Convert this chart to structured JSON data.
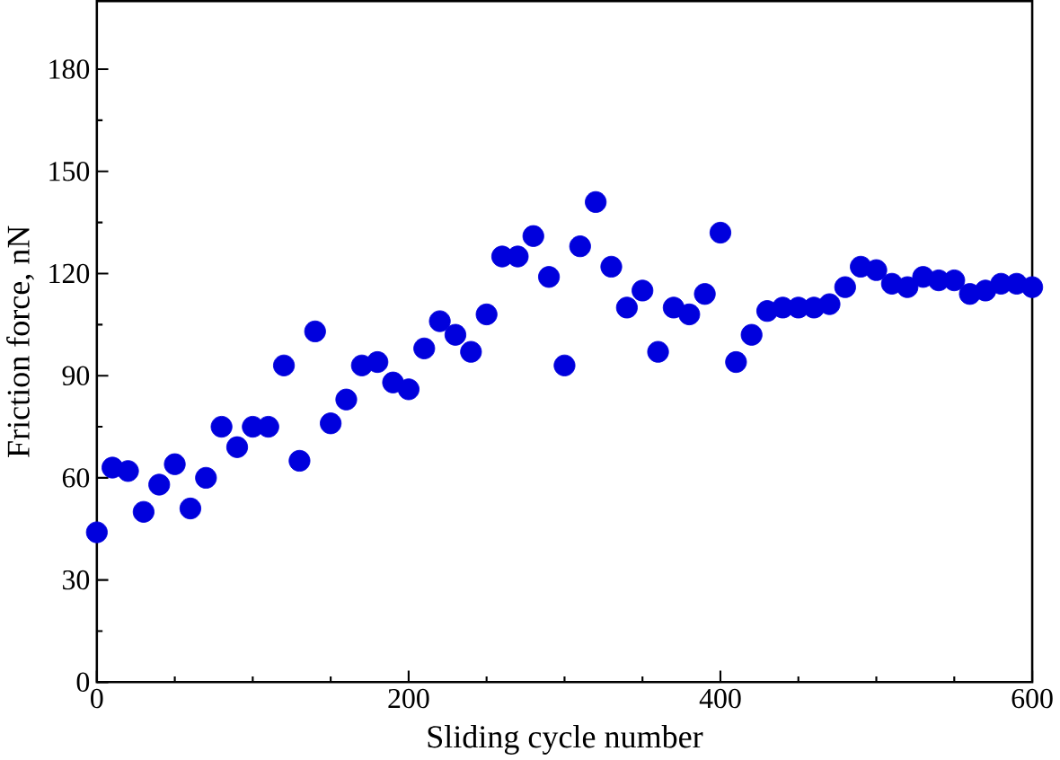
{
  "chart_data": {
    "type": "scatter",
    "xlabel": "Sliding cycle number",
    "ylabel": "Friction force, nN",
    "marker": "circle",
    "grid": false,
    "xlim": [
      0,
      600
    ],
    "xticks": [
      0,
      200,
      400,
      600
    ],
    "ylim": [
      0,
      200
    ],
    "yticks": [
      0,
      30,
      60,
      90,
      120,
      150,
      180
    ],
    "x": [
      0,
      10,
      20,
      30,
      40,
      50,
      60,
      70,
      80,
      90,
      100,
      110,
      120,
      130,
      140,
      150,
      160,
      170,
      180,
      190,
      200,
      210,
      220,
      230,
      240,
      250,
      260,
      270,
      280,
      290,
      300,
      310,
      320,
      330,
      340,
      350,
      360,
      370,
      380,
      390,
      400,
      410,
      420,
      430,
      440,
      450,
      460,
      470,
      480,
      490,
      500,
      510,
      520,
      530,
      540,
      550,
      560,
      570,
      580,
      590,
      600
    ],
    "series": [
      {
        "color": "#0000dd",
        "values": [
          44,
          63,
          62,
          50,
          58,
          64,
          51,
          60,
          75,
          69,
          75,
          75,
          93,
          65,
          103,
          76,
          83,
          93,
          94,
          88,
          86,
          98,
          106,
          102,
          97,
          108,
          125,
          125,
          131,
          119,
          93,
          128,
          141,
          122,
          110,
          115,
          97,
          110,
          108,
          114,
          132,
          94,
          102,
          109,
          110,
          110,
          110,
          111,
          116,
          122,
          121,
          117,
          116,
          119,
          118,
          118,
          114,
          115,
          117,
          117,
          116
        ]
      }
    ]
  }
}
